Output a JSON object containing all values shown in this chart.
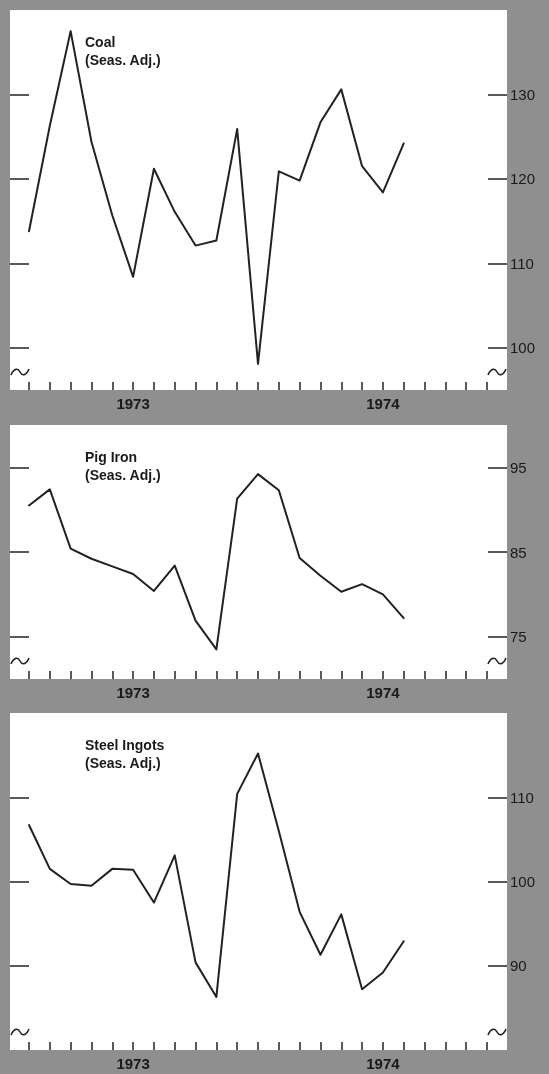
{
  "chart_data": [
    {
      "type": "line",
      "title": "Coal",
      "subtitle": "(Seas. Adj.)",
      "categories": [
        null,
        null,
        null,
        null,
        null,
        "1973",
        null,
        null,
        null,
        null,
        null,
        null,
        null,
        null,
        null,
        null,
        null,
        "1974",
        null,
        null,
        null,
        null,
        null
      ],
      "values": [
        113.8,
        126.3,
        137.5,
        124.4,
        115.7,
        108.4,
        121.2,
        116.1,
        112.1,
        112.7,
        125.9,
        98.1,
        120.9,
        119.8,
        126.7,
        130.6,
        121.5,
        118.4,
        124.2,
        null,
        null,
        null,
        null
      ],
      "color": "#222222",
      "ylim": [
        95,
        140
      ],
      "yticks": [
        100,
        110,
        120,
        130
      ],
      "marker": "none",
      "line_style": "solid"
    },
    {
      "type": "line",
      "title": "Pig Iron",
      "subtitle": "(Seas. Adj.)",
      "categories": [
        null,
        null,
        null,
        null,
        null,
        "1973",
        null,
        null,
        null,
        null,
        null,
        null,
        null,
        null,
        null,
        null,
        null,
        "1974",
        null,
        null,
        null,
        null,
        null
      ],
      "values": [
        90.5,
        92.4,
        85.4,
        84.2,
        83.3,
        82.4,
        80.4,
        83.4,
        76.9,
        73.5,
        91.3,
        94.2,
        92.3,
        84.3,
        82.2,
        80.3,
        81.2,
        80.0,
        77.2,
        null,
        null,
        null,
        null
      ],
      "color": "#222222",
      "ylim": [
        70,
        100
      ],
      "yticks": [
        75,
        85,
        95
      ],
      "marker": "none",
      "line_style": "solid"
    },
    {
      "type": "line",
      "title": "Steel Ingots",
      "subtitle": "(Seas. Adj.)",
      "categories": [
        null,
        null,
        null,
        null,
        null,
        "1973",
        null,
        null,
        null,
        null,
        null,
        null,
        null,
        null,
        null,
        null,
        null,
        "1974",
        null,
        null,
        null,
        null,
        null
      ],
      "values": [
        106.7,
        101.5,
        99.7,
        99.5,
        101.5,
        101.4,
        97.5,
        103.1,
        90.4,
        86.3,
        110.4,
        115.2,
        106.0,
        96.4,
        91.3,
        96.1,
        87.2,
        89.2,
        92.9,
        null,
        null,
        null,
        null
      ],
      "color": "#222222",
      "ylim": [
        80,
        120
      ],
      "yticks": [
        90,
        100,
        110
      ],
      "marker": "none",
      "line_style": "solid"
    }
  ]
}
